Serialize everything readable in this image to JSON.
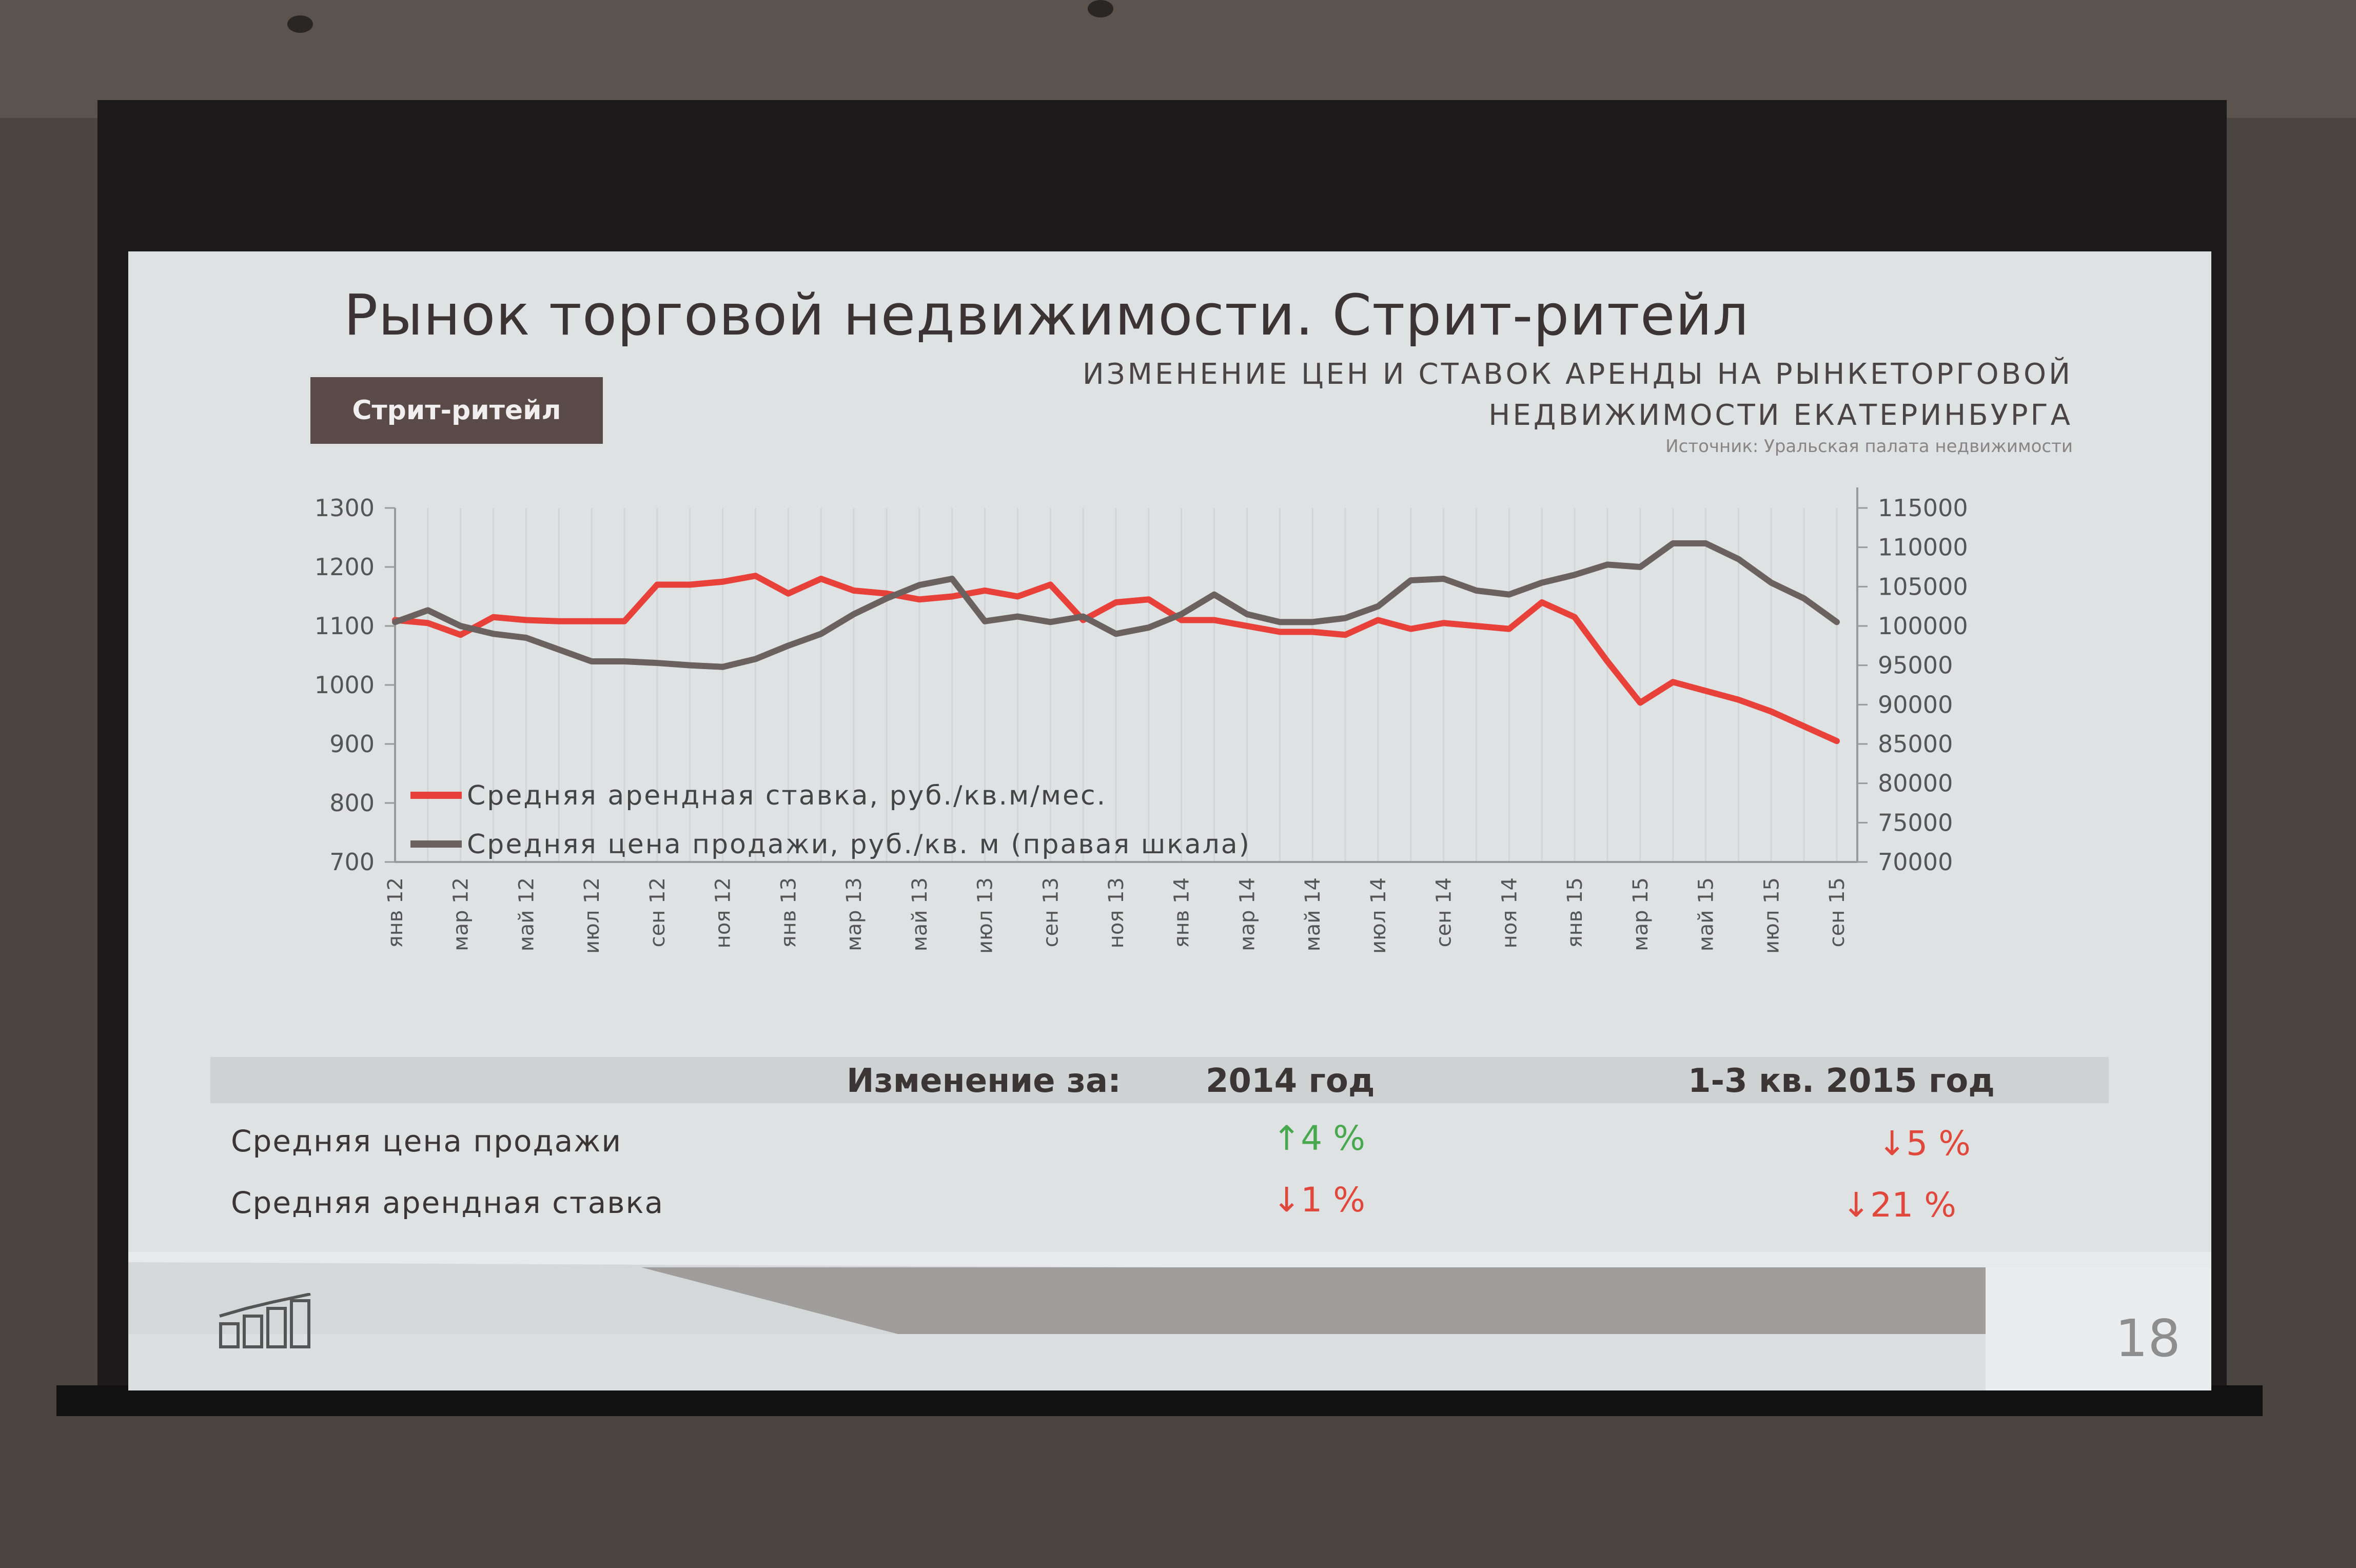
{
  "slide": {
    "title": "Рынок торговой недвижимости. Стрит-ритейл",
    "tag": "Стрит-ритейл",
    "subtitle_line1": "ИЗМЕНЕНИЕ ЦЕН И СТАВОК АРЕНДЫ НА РЫНКЕТОРГОВОЙ",
    "subtitle_line2": "НЕДВИЖИМОСТИ ЕКАТЕРИНБУРГА",
    "source": "Источник: Уральская палата недвижимости",
    "page_number": "18"
  },
  "table": {
    "header_label": "Изменение за:",
    "col1": "2014 год",
    "col2": "1-3 кв. 2015 год",
    "rows": [
      {
        "label": "Средняя цена продажи",
        "v1": "↑4 %",
        "v2": "↓5 %"
      },
      {
        "label": "Средняя арендная ставка",
        "v1": "↓1 %",
        "v2": "↓21 %"
      }
    ]
  },
  "colors": {
    "rent": "#e8413a",
    "price": "#6b615e",
    "up": "#47a84e",
    "down": "#e0483c"
  },
  "chart_data": {
    "type": "line",
    "x": [
      "янв 12",
      "фев 12",
      "мар 12",
      "апр 12",
      "май 12",
      "июн 12",
      "июл 12",
      "авг 12",
      "сен 12",
      "окт 12",
      "ноя 12",
      "дек 12",
      "янв 13",
      "фев 13",
      "мар 13",
      "апр 13",
      "май 13",
      "июн 13",
      "июл 13",
      "авг 13",
      "сен 13",
      "окт 13",
      "ноя 13",
      "дек 13",
      "янв 14",
      "фев 14",
      "мар 14",
      "апр 14",
      "май 14",
      "июн 14",
      "июл 14",
      "авг 14",
      "сен 14",
      "окт 14",
      "ноя 14",
      "дек 14",
      "янв 15",
      "фев 15",
      "мар 15",
      "апр 15",
      "май 15",
      "июн 15",
      "июл 15",
      "авг 15",
      "сен 15"
    ],
    "x_tick_labels": [
      "янв 12",
      "мар 12",
      "май 12",
      "июл 12",
      "сен 12",
      "ноя 12",
      "янв 13",
      "мар 13",
      "май 13",
      "июл 13",
      "сен 13",
      "ноя 13",
      "янв 14",
      "мар 14",
      "май 14",
      "июл 14",
      "сен 14",
      "ноя 14",
      "янв 15",
      "мар 15",
      "май 15",
      "июл 15",
      "сен 15"
    ],
    "left_axis": {
      "ylim": [
        700,
        1300
      ],
      "ticks": [
        "700",
        "800",
        "900",
        "1000",
        "1100",
        "1200",
        "1300"
      ]
    },
    "right_axis": {
      "ylim": [
        70000,
        115000
      ],
      "ticks": [
        "70000",
        "75000",
        "80000",
        "85000",
        "90000",
        "95000",
        "100000",
        "105000",
        "110000",
        "115000"
      ]
    },
    "series": [
      {
        "name": "Средняя арендная ставка, руб./кв.м/мес.",
        "axis": "left",
        "values": [
          1110,
          1105,
          1085,
          1115,
          1110,
          1108,
          1108,
          1108,
          1170,
          1170,
          1175,
          1185,
          1155,
          1180,
          1160,
          1155,
          1145,
          1150,
          1160,
          1150,
          1170,
          1110,
          1140,
          1145,
          1110,
          1110,
          1100,
          1090,
          1090,
          1085,
          1110,
          1095,
          1105,
          1100,
          1095,
          1140,
          1115,
          1040,
          970,
          1005,
          990,
          975,
          955,
          930,
          905
        ]
      },
      {
        "name": "Средняя цена продажи, руб./кв. м (правая шкала)",
        "axis": "right",
        "values": [
          100500,
          102000,
          100000,
          99000,
          98500,
          97000,
          95500,
          95500,
          95300,
          95000,
          94800,
          95800,
          97500,
          99000,
          101500,
          103500,
          105200,
          106000,
          100600,
          101200,
          100500,
          101200,
          99000,
          99800,
          101500,
          104000,
          101500,
          100500,
          100500,
          101000,
          102500,
          105800,
          106000,
          104500,
          104000,
          105500,
          106500,
          107800,
          107500,
          110500,
          110500,
          108500,
          105500,
          103500,
          100500
        ]
      }
    ],
    "legend": "inside-bottom-left",
    "grid": "vertical"
  }
}
